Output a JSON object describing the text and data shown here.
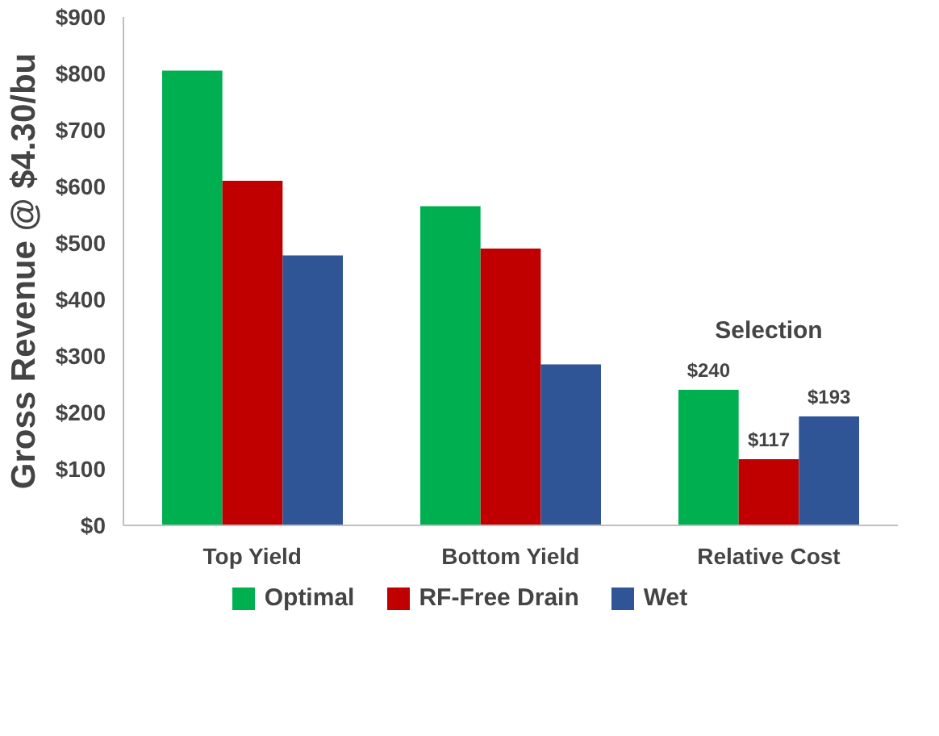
{
  "chart_data": {
    "type": "bar",
    "ylabel": "Gross Revenue @ $4.30/bu",
    "categories": [
      "Top Yield",
      "Bottom Yield",
      "Relative Cost"
    ],
    "series": [
      {
        "name": "Optimal",
        "color": "#00b050",
        "values": [
          805,
          565,
          240
        ],
        "value_labels": [
          null,
          null,
          "$240"
        ]
      },
      {
        "name": "RF-Free Drain",
        "color": "#c00000",
        "values": [
          610,
          490,
          117
        ],
        "value_labels": [
          null,
          null,
          "$117"
        ]
      },
      {
        "name": "Wet",
        "color": "#2f5597",
        "values": [
          478,
          285,
          193
        ],
        "value_labels": [
          null,
          null,
          "$193"
        ]
      }
    ],
    "ylim": [
      0,
      900
    ],
    "yticks": [
      {
        "value": 0,
        "label": "$0"
      },
      {
        "value": 100,
        "label": "$100"
      },
      {
        "value": 200,
        "label": "$200"
      },
      {
        "value": 300,
        "label": "$300"
      },
      {
        "value": 400,
        "label": "$400"
      },
      {
        "value": 500,
        "label": "$500"
      },
      {
        "value": 600,
        "label": "$600"
      },
      {
        "value": 700,
        "label": "$700"
      },
      {
        "value": 800,
        "label": "$800"
      },
      {
        "value": 900,
        "label": "$900"
      }
    ],
    "annotations": [
      "Selection"
    ],
    "grid": false,
    "legend": "bottom"
  }
}
